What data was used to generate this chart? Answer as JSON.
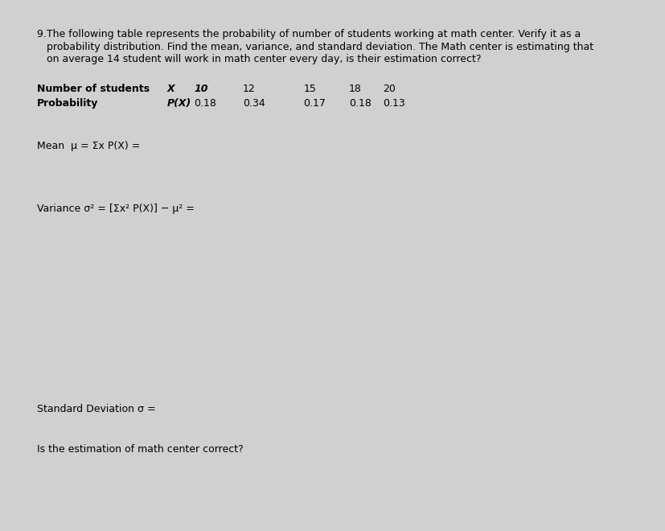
{
  "bg_color": "#d0d0d0",
  "panel1_color": "#ffffff",
  "panel2_color": "#ffffff",
  "title_line1": "9.The following table represents the probability of number of students working at math center. Verify it as a",
  "title_line2": "   probability distribution. Find the mean, variance, and standard deviation. The Math center is estimating that",
  "title_line3": "   on average 14 student will work in math center every day, is their estimation correct?",
  "row1_label": "Number of students",
  "row1_X": "X",
  "row1_col1": "10",
  "row1_col2": "12",
  "row1_col3": "15",
  "row1_col4": "18",
  "row1_col5": "20",
  "row2_label": "Probability",
  "row2_PX": "P(X)",
  "row2_col1": "0.18",
  "row2_col2": "0.34",
  "row2_col3": "0.17",
  "row2_col4": "0.18",
  "row2_col5": "0.13",
  "mean_text": "Mean  μ = Σx P(X) =",
  "variance_text": "Variance σ² = [Σx² P(X)] − μ² =",
  "std_text": "Standard Deviation σ =",
  "estimation_text": "Is the estimation of math center correct?",
  "font_size": 9.0,
  "font_size_bold": 9.0
}
